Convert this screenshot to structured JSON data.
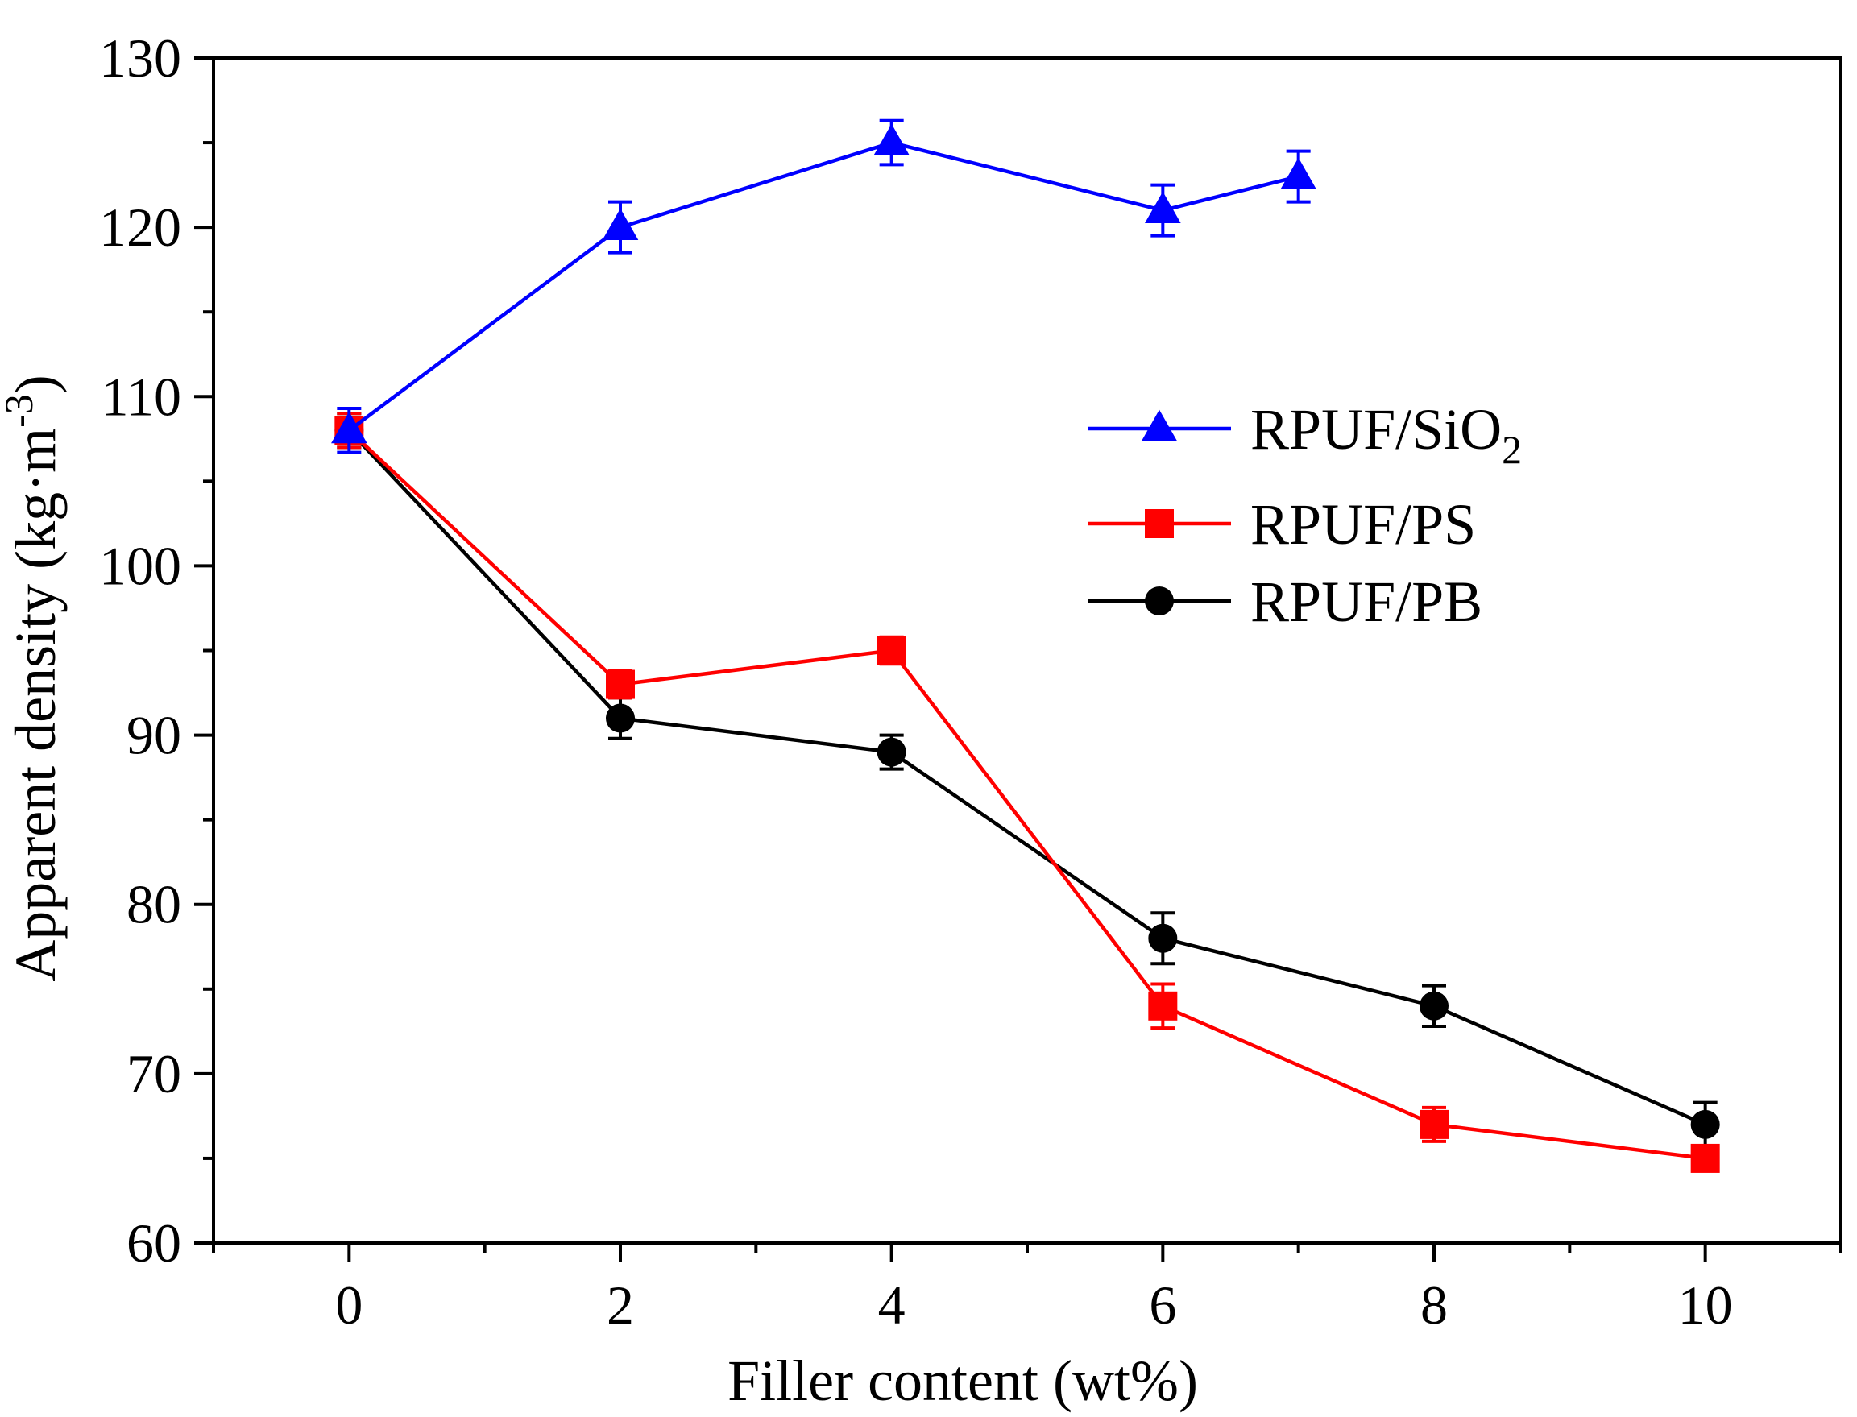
{
  "chart_data": {
    "type": "line",
    "title": "",
    "xlabel": "Filler content (wt%)",
    "ylabel": "Apparent density (kg·m⁻³)",
    "xlim": [
      -1,
      11
    ],
    "ylim": [
      60,
      130
    ],
    "x_ticks": [
      0,
      2,
      4,
      6,
      8,
      10
    ],
    "x_tick_labels": [
      "0",
      "2",
      "4",
      "6",
      "8",
      "10"
    ],
    "y_ticks": [
      60,
      70,
      80,
      90,
      100,
      110,
      120,
      130
    ],
    "y_tick_labels": [
      "60",
      "70",
      "80",
      "90",
      "100",
      "110",
      "120",
      "130"
    ],
    "grid": false,
    "legend_position": "right-middle",
    "series": [
      {
        "name": "RPUF/SiO2",
        "label_main": "RPUF/SiO",
        "label_sub": "2",
        "color": "#0000ff",
        "marker": "triangle",
        "x": [
          0,
          2,
          4,
          6,
          7
        ],
        "y": [
          108,
          120,
          125,
          121,
          123
        ],
        "err": [
          1.3,
          1.5,
          1.3,
          1.5,
          1.5
        ]
      },
      {
        "name": "RPUF/PS",
        "label_main": "RPUF/PS",
        "label_sub": "",
        "color": "#ff0000",
        "marker": "square",
        "x": [
          0,
          2,
          4,
          6,
          8,
          10
        ],
        "y": [
          108,
          93,
          95,
          74,
          67,
          65
        ],
        "err": [
          1.0,
          0.8,
          0.8,
          1.3,
          1.0,
          0.6
        ]
      },
      {
        "name": "RPUF/PB",
        "label_main": "RPUF/PB",
        "label_sub": "",
        "color": "#000000",
        "marker": "circle",
        "x": [
          0,
          2,
          4,
          6,
          8,
          10
        ],
        "y": [
          108,
          91,
          89,
          78,
          74,
          67
        ],
        "err": [
          1.0,
          1.2,
          1.0,
          1.5,
          1.2,
          1.3
        ]
      }
    ]
  }
}
